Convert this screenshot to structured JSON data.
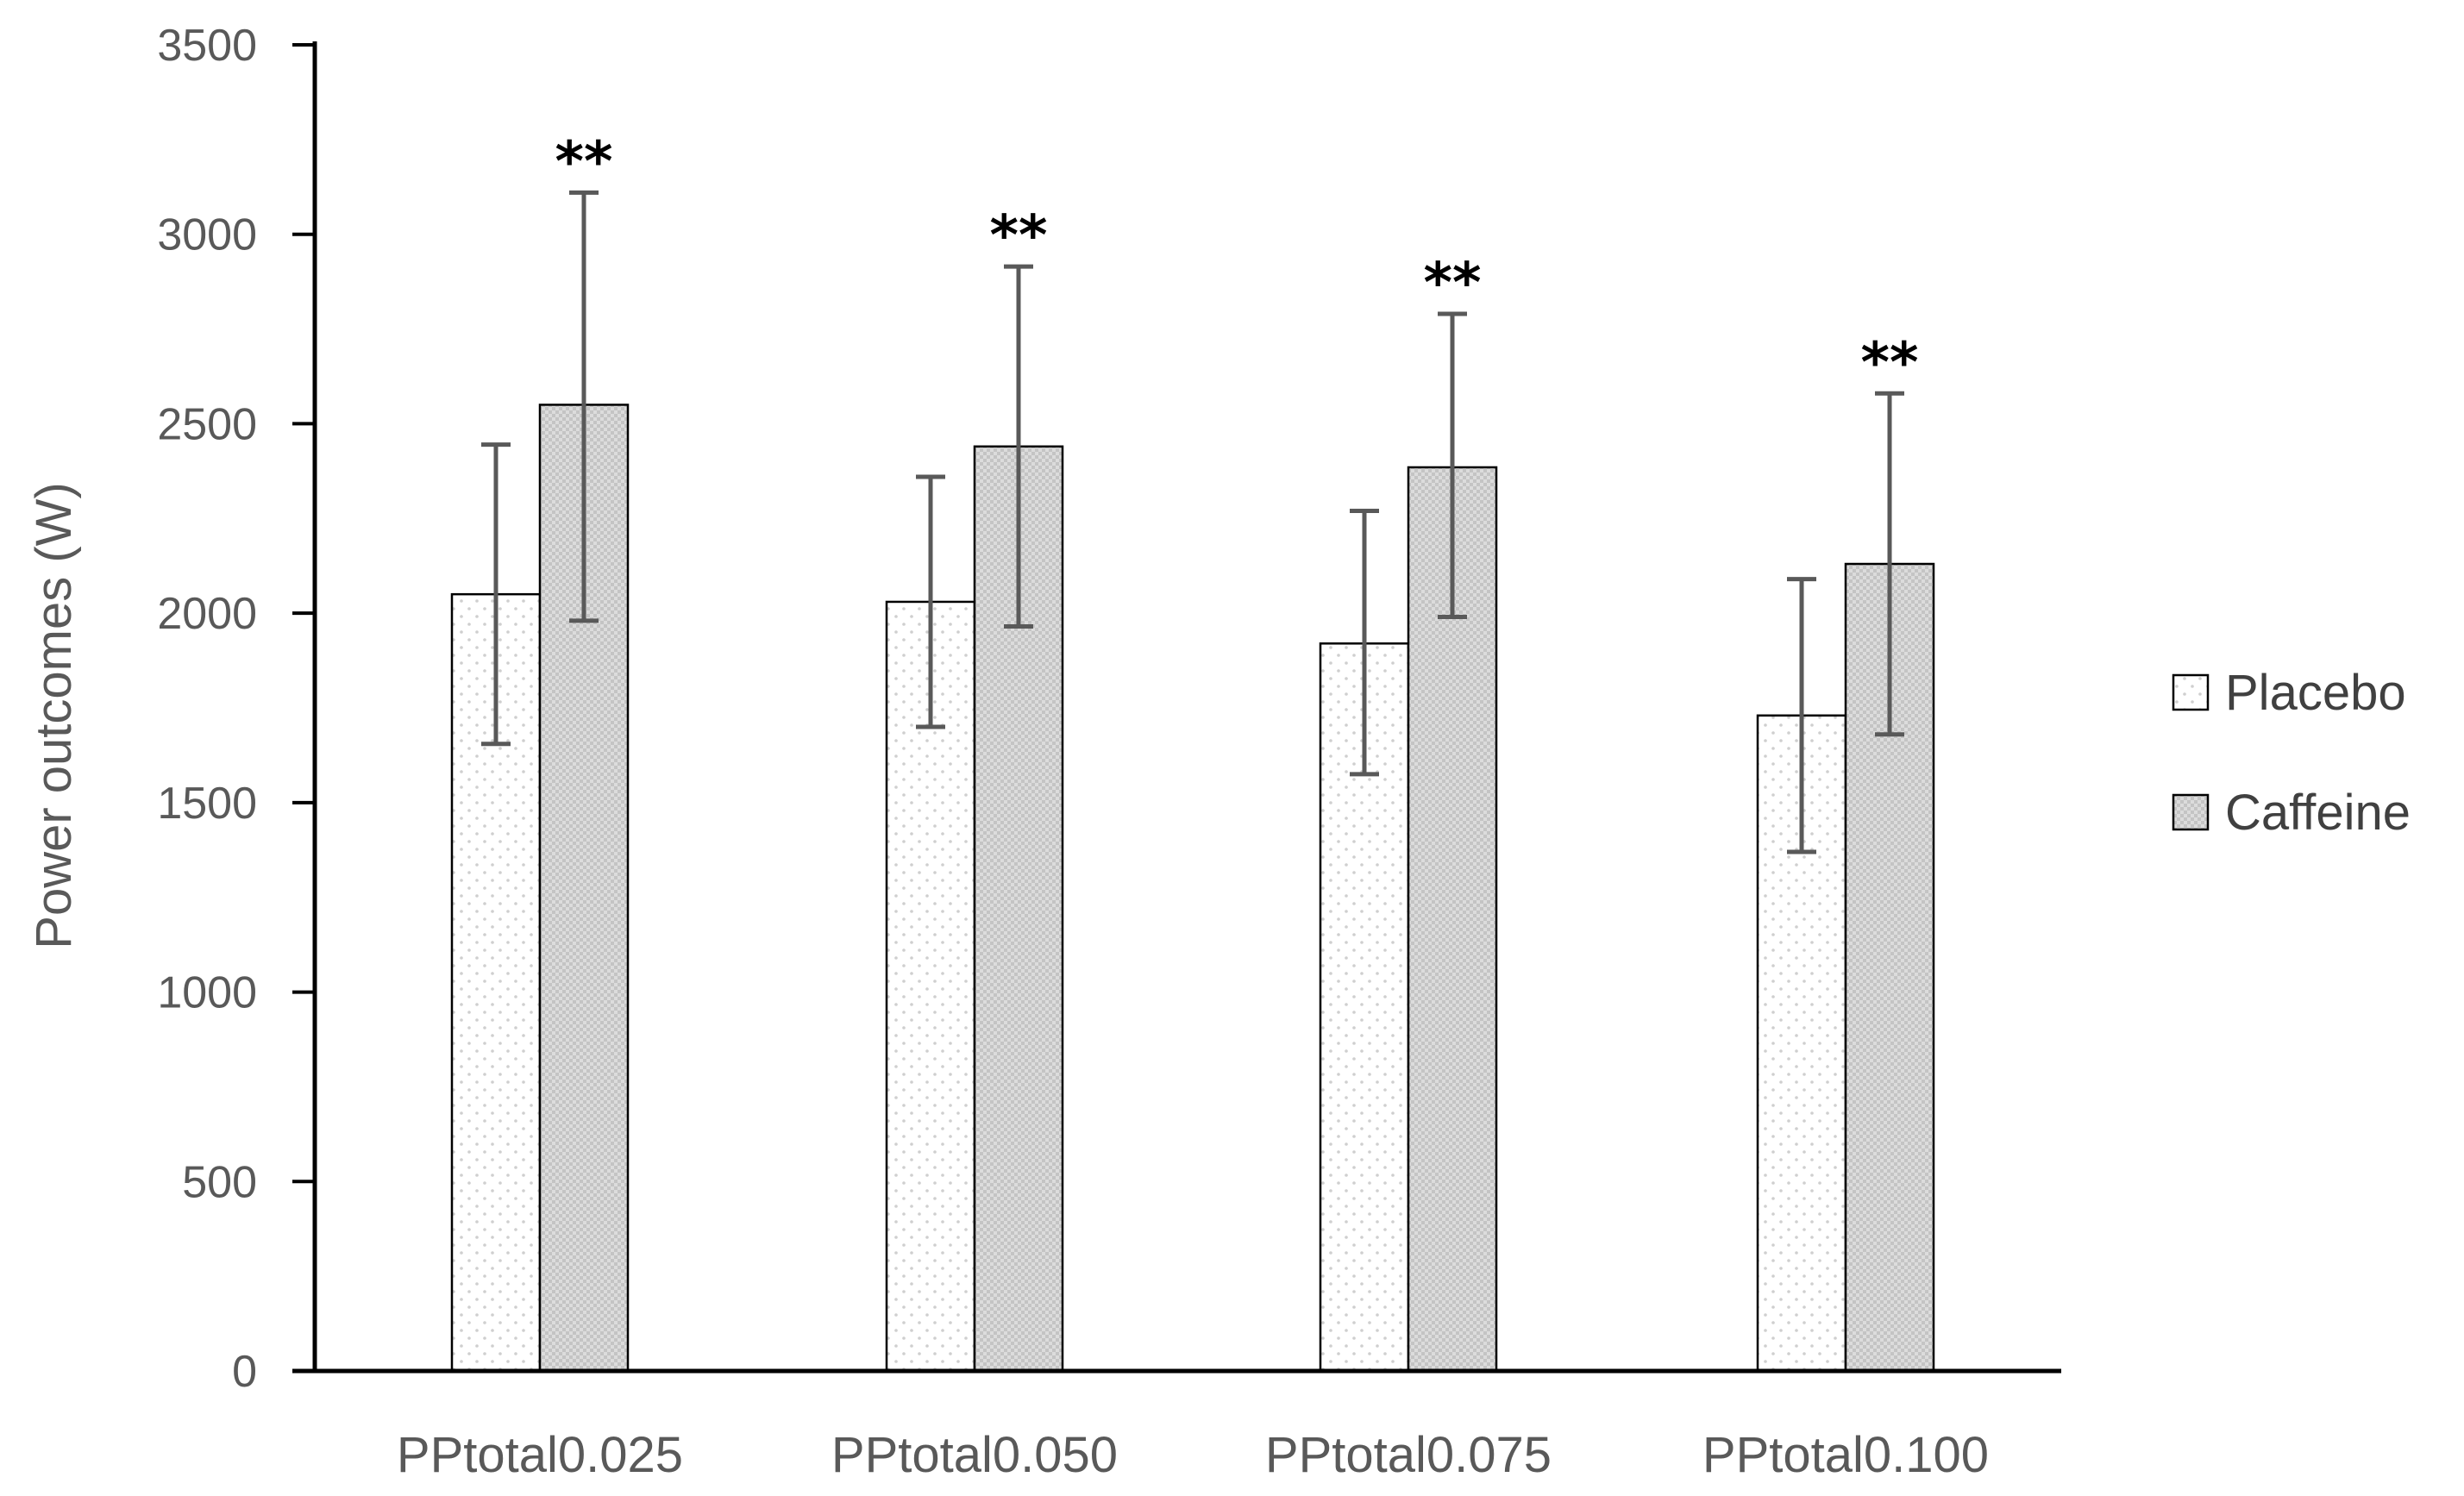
{
  "chart_data": {
    "type": "bar",
    "title": "",
    "xlabel": "",
    "ylabel": "Power outcomes (W)",
    "ylim": [
      0,
      3500
    ],
    "yticks": [
      0,
      500,
      1000,
      1500,
      2000,
      2500,
      3000,
      3500
    ],
    "grid": false,
    "legend_position": "right",
    "categories": [
      "PPtotal0.025",
      "PPtotal0.050",
      "PPtotal0.075",
      "PPtotal0.100"
    ],
    "series": [
      {
        "name": "Placebo",
        "values": [
          2050,
          2030,
          1920,
          1730
        ],
        "error_low": [
          1655,
          1700,
          1575,
          1370
        ],
        "error_high": [
          2445,
          2360,
          2270,
          2090
        ],
        "fill": "#ffffff",
        "pattern_dot": "#cfcfcf"
      },
      {
        "name": "Caffeine",
        "values": [
          2550,
          2440,
          2385,
          2130
        ],
        "error_low": [
          1980,
          1965,
          1990,
          1680
        ],
        "error_high": [
          3110,
          2915,
          2790,
          2580
        ],
        "fill": "#d9d9d9",
        "pattern_dot": "#b5b5b5"
      }
    ],
    "annotations": [
      "**",
      "**",
      "**",
      "**"
    ],
    "colors": {
      "axis": "#000000",
      "error_bar": "#595959",
      "bar_edge": "#000000",
      "text": "#595959"
    }
  }
}
